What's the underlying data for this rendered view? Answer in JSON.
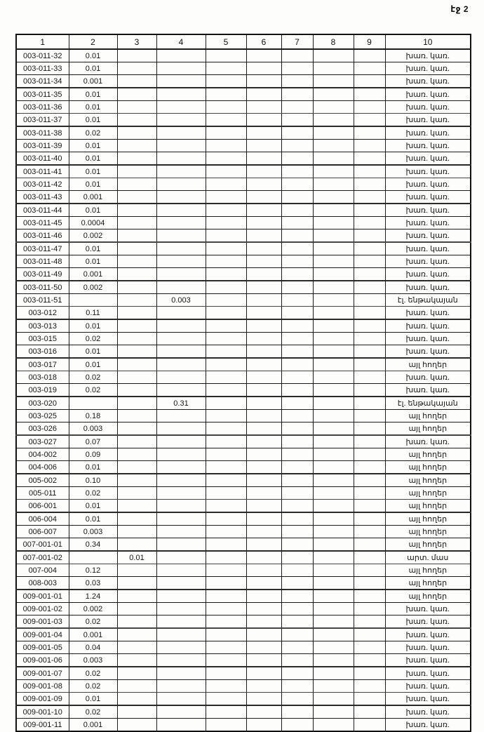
{
  "page": {
    "label": "էջ 2"
  },
  "table": {
    "headers": [
      "1",
      "2",
      "3",
      "4",
      "5",
      "6",
      "7",
      "8",
      "9",
      "10"
    ],
    "rows": [
      [
        "003-011-32",
        "0.01",
        "",
        "",
        "",
        "",
        "",
        "",
        "",
        "խառ. կառ."
      ],
      [
        "003-011-33",
        "0.01",
        "",
        "",
        "",
        "",
        "",
        "",
        "",
        "խառ. կառ."
      ],
      [
        "003-011-34",
        "0.001",
        "",
        "",
        "",
        "",
        "",
        "",
        "",
        "խառ. կառ."
      ],
      [
        "003-011-35",
        "0.01",
        "",
        "",
        "",
        "",
        "",
        "",
        "",
        "խառ. կառ."
      ],
      [
        "003-011-36",
        "0.01",
        "",
        "",
        "",
        "",
        "",
        "",
        "",
        "խառ. կառ."
      ],
      [
        "003-011-37",
        "0.01",
        "",
        "",
        "",
        "",
        "",
        "",
        "",
        "խառ. կառ."
      ],
      [
        "003-011-38",
        "0.02",
        "",
        "",
        "",
        "",
        "",
        "",
        "",
        "խառ. կառ."
      ],
      [
        "003-011-39",
        "0.01",
        "",
        "",
        "",
        "",
        "",
        "",
        "",
        "խառ. կառ."
      ],
      [
        "003-011-40",
        "0.01",
        "",
        "",
        "",
        "",
        "",
        "",
        "",
        "խառ. կառ."
      ],
      [
        "003-011-41",
        "0.01",
        "",
        "",
        "",
        "",
        "",
        "",
        "",
        "խառ. կառ."
      ],
      [
        "003-011-42",
        "0.01",
        "",
        "",
        "",
        "",
        "",
        "",
        "",
        "խառ. կառ."
      ],
      [
        "003-011-43",
        "0.001",
        "",
        "",
        "",
        "",
        "",
        "",
        "",
        "խառ. կառ."
      ],
      [
        "003-011-44",
        "0.01",
        "",
        "",
        "",
        "",
        "",
        "",
        "",
        "խառ. կառ."
      ],
      [
        "003-011-45",
        "0.0004",
        "",
        "",
        "",
        "",
        "",
        "",
        "",
        "խառ. կառ."
      ],
      [
        "003-011-46",
        "0.002",
        "",
        "",
        "",
        "",
        "",
        "",
        "",
        "խառ. կառ."
      ],
      [
        "003-011-47",
        "0.01",
        "",
        "",
        "",
        "",
        "",
        "",
        "",
        "խառ. կառ."
      ],
      [
        "003-011-48",
        "0.01",
        "",
        "",
        "",
        "",
        "",
        "",
        "",
        "խառ. կառ."
      ],
      [
        "003-011-49",
        "0.001",
        "",
        "",
        "",
        "",
        "",
        "",
        "",
        "խառ. կառ."
      ],
      [
        "003-011-50",
        "0.002",
        "",
        "",
        "",
        "",
        "",
        "",
        "",
        "խառ. կառ."
      ],
      [
        "003-011-51",
        "",
        "",
        "0.003",
        "",
        "",
        "",
        "",
        "",
        "էլ. ենթակայան"
      ],
      [
        "003-012",
        "0.11",
        "",
        "",
        "",
        "",
        "",
        "",
        "",
        "խառ. կառ."
      ],
      [
        "003-013",
        "0.01",
        "",
        "",
        "",
        "",
        "",
        "",
        "",
        "խառ. կառ."
      ],
      [
        "003-015",
        "0.02",
        "",
        "",
        "",
        "",
        "",
        "",
        "",
        "խառ. կառ."
      ],
      [
        "003-016",
        "0.01",
        "",
        "",
        "",
        "",
        "",
        "",
        "",
        "խառ. կառ."
      ],
      [
        "003-017",
        "0.01",
        "",
        "",
        "",
        "",
        "",
        "",
        "",
        "այլ հողեր"
      ],
      [
        "003-018",
        "0.02",
        "",
        "",
        "",
        "",
        "",
        "",
        "",
        "խառ. կառ."
      ],
      [
        "003-019",
        "0.02",
        "",
        "",
        "",
        "",
        "",
        "",
        "",
        "խառ. կառ."
      ],
      [
        "003-020",
        "",
        "",
        "0.31",
        "",
        "",
        "",
        "",
        "",
        "էլ. ենթակայան"
      ],
      [
        "003-025",
        "0.18",
        "",
        "",
        "",
        "",
        "",
        "",
        "",
        "այլ հողեր"
      ],
      [
        "003-026",
        "0.003",
        "",
        "",
        "",
        "",
        "",
        "",
        "",
        "այլ հողեր"
      ],
      [
        "003-027",
        "0.07",
        "",
        "",
        "",
        "",
        "",
        "",
        "",
        "խառ. կառ."
      ],
      [
        "004-002",
        "0.09",
        "",
        "",
        "",
        "",
        "",
        "",
        "",
        "այլ հողեր"
      ],
      [
        "004-006",
        "0.01",
        "",
        "",
        "",
        "",
        "",
        "",
        "",
        "այլ հողեր"
      ],
      [
        "005-002",
        "0.10",
        "",
        "",
        "",
        "",
        "",
        "",
        "",
        "այլ հողեր"
      ],
      [
        "005-011",
        "0.02",
        "",
        "",
        "",
        "",
        "",
        "",
        "",
        "այլ հողեր"
      ],
      [
        "006-001",
        "0.01",
        "",
        "",
        "",
        "",
        "",
        "",
        "",
        "այլ հողեր"
      ],
      [
        "006-004",
        "0.01",
        "",
        "",
        "",
        "",
        "",
        "",
        "",
        "այլ հողեր"
      ],
      [
        "006-007",
        "0.003",
        "",
        "",
        "",
        "",
        "",
        "",
        "",
        "այլ հողեր"
      ],
      [
        "007-001-01",
        "0.34",
        "",
        "",
        "",
        "",
        "",
        "",
        "",
        "այլ հողեր"
      ],
      [
        "007-001-02",
        "",
        "0.01",
        "",
        "",
        "",
        "",
        "",
        "",
        "արտ. մաս"
      ],
      [
        "007-004",
        "0.12",
        "",
        "",
        "",
        "",
        "",
        "",
        "",
        "այլ հողեր"
      ],
      [
        "008-003",
        "0.03",
        "",
        "",
        "",
        "",
        "",
        "",
        "",
        "այլ հողեր"
      ],
      [
        "009-001-01",
        "1.24",
        "",
        "",
        "",
        "",
        "",
        "",
        "",
        "այլ հողեր"
      ],
      [
        "009-001-02",
        "0.002",
        "",
        "",
        "",
        "",
        "",
        "",
        "",
        "խառ. կառ."
      ],
      [
        "009-001-03",
        "0.02",
        "",
        "",
        "",
        "",
        "",
        "",
        "",
        "խառ. կառ."
      ],
      [
        "009-001-04",
        "0.001",
        "",
        "",
        "",
        "",
        "",
        "",
        "",
        "խառ. կառ."
      ],
      [
        "009-001-05",
        "0.04",
        "",
        "",
        "",
        "",
        "",
        "",
        "",
        "խառ. կառ."
      ],
      [
        "009-001-06",
        "0.003",
        "",
        "",
        "",
        "",
        "",
        "",
        "",
        "խառ. կառ."
      ],
      [
        "009-001-07",
        "0.02",
        "",
        "",
        "",
        "",
        "",
        "",
        "",
        "խառ. կառ."
      ],
      [
        "009-001-08",
        "0.02",
        "",
        "",
        "",
        "",
        "",
        "",
        "",
        "խառ. կառ."
      ],
      [
        "009-001-09",
        "0.01",
        "",
        "",
        "",
        "",
        "",
        "",
        "",
        "խառ. կառ."
      ],
      [
        "009-001-10",
        "0.02",
        "",
        "",
        "",
        "",
        "",
        "",
        "",
        "խառ. կառ."
      ],
      [
        "009-001-11",
        "0.001",
        "",
        "",
        "",
        "",
        "",
        "",
        "",
        "խառ. կառ."
      ]
    ]
  }
}
